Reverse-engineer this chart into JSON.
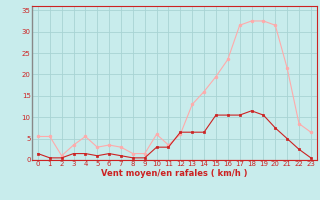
{
  "x": [
    0,
    1,
    2,
    3,
    4,
    5,
    6,
    7,
    8,
    9,
    10,
    11,
    12,
    13,
    14,
    15,
    16,
    17,
    18,
    19,
    20,
    21,
    22,
    23
  ],
  "rafales": [
    5.5,
    5.5,
    1.0,
    3.5,
    5.5,
    3.0,
    3.5,
    3.0,
    1.5,
    1.5,
    6.0,
    3.5,
    6.0,
    13.0,
    16.0,
    19.5,
    23.5,
    31.5,
    32.5,
    32.5,
    31.5,
    21.5,
    8.5,
    6.5
  ],
  "moyen": [
    1.5,
    0.5,
    0.5,
    1.5,
    1.5,
    1.0,
    1.5,
    1.0,
    0.5,
    0.5,
    3.0,
    3.0,
    6.5,
    6.5,
    6.5,
    10.5,
    10.5,
    10.5,
    11.5,
    10.5,
    7.5,
    5.0,
    2.5,
    0.5
  ],
  "bg_color": "#c8ecec",
  "grid_color": "#a8d4d4",
  "line_color_rafales": "#ffaaaa",
  "line_color_moyen": "#cc2222",
  "xlabel": "Vent moyen/en rafales ( km/h )",
  "ylim": [
    0,
    36
  ],
  "xlim": [
    -0.5,
    23.5
  ],
  "yticks": [
    0,
    5,
    10,
    15,
    20,
    25,
    30,
    35
  ],
  "xticks": [
    0,
    1,
    2,
    3,
    4,
    5,
    6,
    7,
    8,
    9,
    10,
    11,
    12,
    13,
    14,
    15,
    16,
    17,
    18,
    19,
    20,
    21,
    22,
    23
  ],
  "xlabel_fontsize": 6.0,
  "tick_fontsize": 5.0,
  "linewidth": 0.8,
  "markersize_rafales": 2.0,
  "markersize_moyen": 2.0
}
